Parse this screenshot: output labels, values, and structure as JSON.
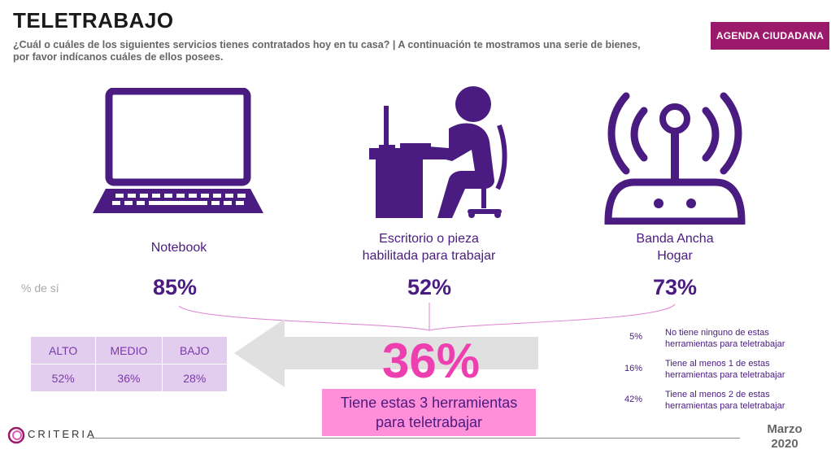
{
  "header": {
    "title": "TELETRABAJO",
    "subtitle": "¿Cuál o cuáles de los siguientes servicios tienes contratados hoy en tu casa? | A continuación te mostramos una serie de bienes, por favor indícanos cuáles de ellos posees.",
    "badge": "AGENDA CIUDADANA"
  },
  "items": [
    {
      "icon": "laptop-icon",
      "label": "Notebook",
      "value": "85%"
    },
    {
      "icon": "desk-worker-icon",
      "label_line1": "Escritorio o pieza",
      "label_line2": "habilitada para trabajar",
      "value": "52%"
    },
    {
      "icon": "router-icon",
      "label_line1": "Banda Ancha",
      "label_line2": "Hogar",
      "value": "73%"
    }
  ],
  "pct_label": "% de sí",
  "segments": {
    "headers": [
      "ALTO",
      "MEDIO",
      "BAJO"
    ],
    "values": [
      "52%",
      "36%",
      "28%"
    ]
  },
  "total": {
    "value": "36%",
    "caption_line1": "Tiene estas 3 herramientas",
    "caption_line2": "para teletrabajar"
  },
  "stats": [
    {
      "pct": "5%",
      "line1": "No tiene ninguno de estas",
      "line2": "herramientas para teletrabajar"
    },
    {
      "pct": "16%",
      "line1": "Tiene al menos 1 de estas",
      "line2": "herramientas para teletrabajar"
    },
    {
      "pct": "42%",
      "line1": "Tiene al menos 2 de estas",
      "line2": "herramientas para teletrabajar"
    }
  ],
  "footer": {
    "brand": "CRITERIA",
    "date_month": "Marzo",
    "date_year": "2020"
  },
  "colors": {
    "primary": "#4a1b80",
    "accent_pink": "#ee3fb1",
    "badge": "#9b1a6b",
    "table_bg": "#e3cdee",
    "arrow_gray": "#e0e0e0"
  }
}
